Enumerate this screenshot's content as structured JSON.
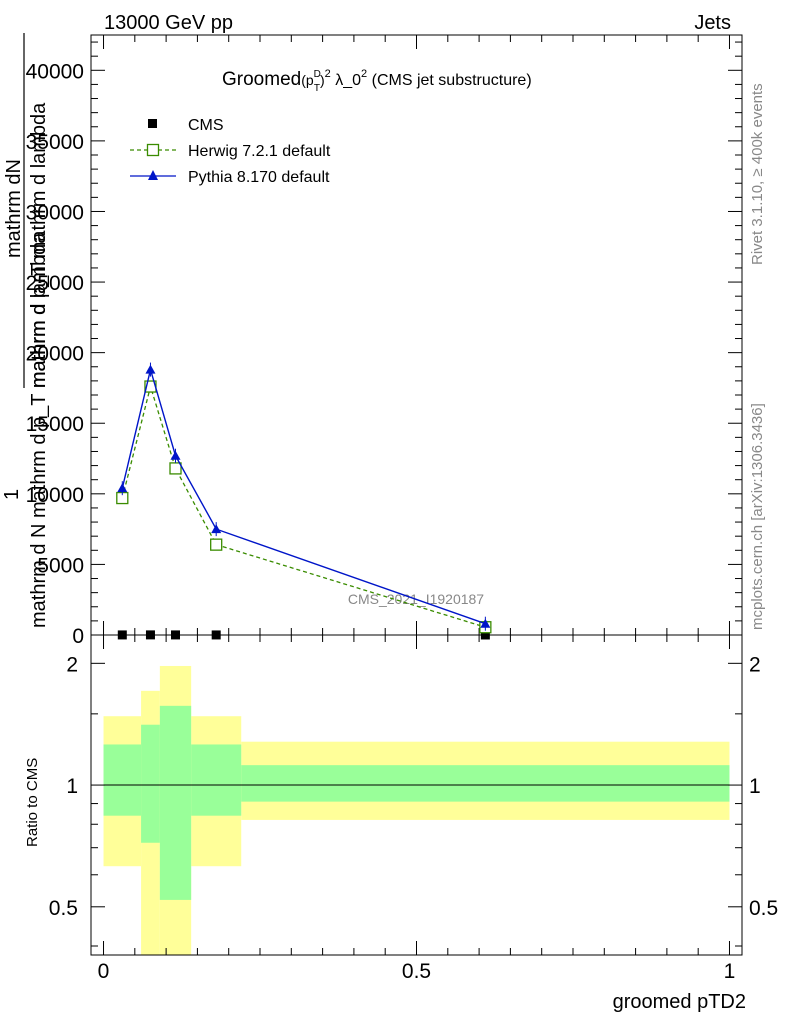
{
  "header": {
    "left": "13000 GeV pp",
    "right": "Jets"
  },
  "side_labels": {
    "rivet": "Rivet 3.1.10, ≥ 400k events",
    "mcplots": "mcplots.cern.ch [arXiv:1306.3436]"
  },
  "title": {
    "prefix": "Groomed",
    "p": "(p",
    "p_sup": "D",
    "p_sub": "T",
    "p_close": ")",
    "p_exp": "2",
    "lambda": " λ_0",
    "lambda_exp": "2",
    "suffix": " (CMS jet substructure)"
  },
  "watermark": "CMS_2021_I1920187",
  "legend": {
    "cms": "CMS",
    "herwig": "Herwig 7.2.1 default",
    "pythia": "Pythia 8.170 default"
  },
  "axes": {
    "ylabel_top": "mathrm dN",
    "ylabel_den": "mathrm d p_T mathrm d lambda",
    "ylabel_prefix": "1",
    "ylabel_frac_den": "mathrm d N mathrm d p_T mathrm d lambda",
    "ratio_ylabel": "Ratio to CMS",
    "xlabel": "groomed pTD2"
  },
  "chart_data": {
    "type": "line",
    "main": {
      "ylim": [
        0,
        42500
      ],
      "yticks": [
        0,
        5000,
        10000,
        15000,
        20000,
        25000,
        30000,
        35000,
        40000
      ],
      "ytick_labels": [
        "0",
        "5000",
        "10000",
        "15000",
        "20000",
        "25000",
        "30000",
        "35000",
        "40000"
      ],
      "xlim": [
        -0.02,
        1.02
      ],
      "series": [
        {
          "name": "CMS",
          "style": "markers-square",
          "color": "#000000",
          "x": [
            0.03,
            0.075,
            0.115,
            0.18,
            0.61
          ],
          "y": [
            5,
            8,
            6,
            4,
            1
          ]
        },
        {
          "name": "Herwig 7.2.1 default",
          "style": "dashed-open-square",
          "color": "#3a8c00",
          "x": [
            0.03,
            0.075,
            0.115,
            0.18,
            0.61
          ],
          "y": [
            9700,
            17600,
            11800,
            6400,
            550
          ]
        },
        {
          "name": "Pythia 8.170 default",
          "style": "solid-triangle",
          "color": "#0015c8",
          "x": [
            0.03,
            0.075,
            0.115,
            0.18,
            0.61
          ],
          "y": [
            10400,
            18800,
            12700,
            7500,
            800
          ]
        }
      ]
    },
    "ratio": {
      "ylim": [
        0.38,
        2.35
      ],
      "yticks": [
        0.5,
        1,
        2
      ],
      "ytick_labels": [
        "0.5",
        "1",
        "2"
      ],
      "xlim": [
        -0.02,
        1.02
      ],
      "xticks": [
        0,
        0.5,
        1
      ],
      "xtick_labels": [
        "0",
        "0.5",
        "1"
      ],
      "bins": [
        {
          "x0": 0.0,
          "x1": 0.06,
          "yellow": [
            0.63,
            1.48
          ],
          "green": [
            0.84,
            1.26
          ]
        },
        {
          "x0": 0.06,
          "x1": 0.09,
          "yellow": [
            0.38,
            1.71
          ],
          "green": [
            0.72,
            1.41
          ]
        },
        {
          "x0": 0.09,
          "x1": 0.14,
          "yellow": [
            0.38,
            1.97
          ],
          "green": [
            0.52,
            1.57
          ]
        },
        {
          "x0": 0.14,
          "x1": 0.22,
          "yellow": [
            0.63,
            1.48
          ],
          "green": [
            0.84,
            1.26
          ]
        },
        {
          "x0": 0.22,
          "x1": 1.0,
          "yellow": [
            0.82,
            1.28
          ],
          "green": [
            0.91,
            1.12
          ]
        }
      ],
      "colors": {
        "yellow": "#ffff99",
        "green": "#99ff99"
      }
    }
  }
}
